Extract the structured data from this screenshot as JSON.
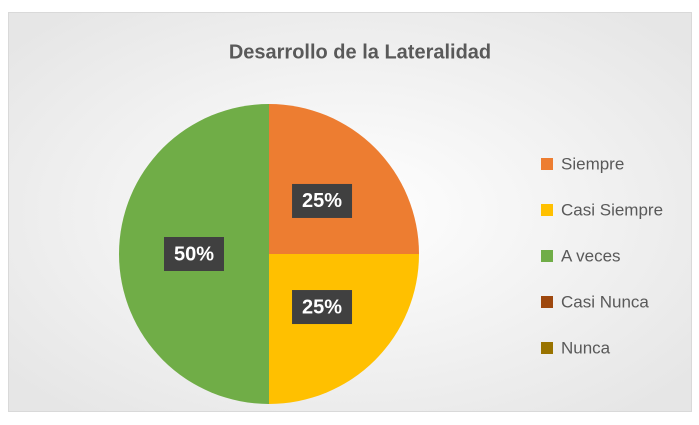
{
  "chart_data": {
    "type": "pie",
    "title": "Desarrollo de la Lateralidad",
    "categories": [
      "Siempre",
      "Casi Siempre",
      "A veces",
      "Casi Nunca",
      "Nunca"
    ],
    "values": [
      25,
      25,
      50,
      0,
      0
    ],
    "value_labels": [
      "25%",
      "25%",
      "50%",
      null,
      null
    ],
    "colors": [
      "#ed7d31",
      "#ffc000",
      "#70ad47",
      "#9e480e",
      "#997300"
    ],
    "legend": "right"
  }
}
